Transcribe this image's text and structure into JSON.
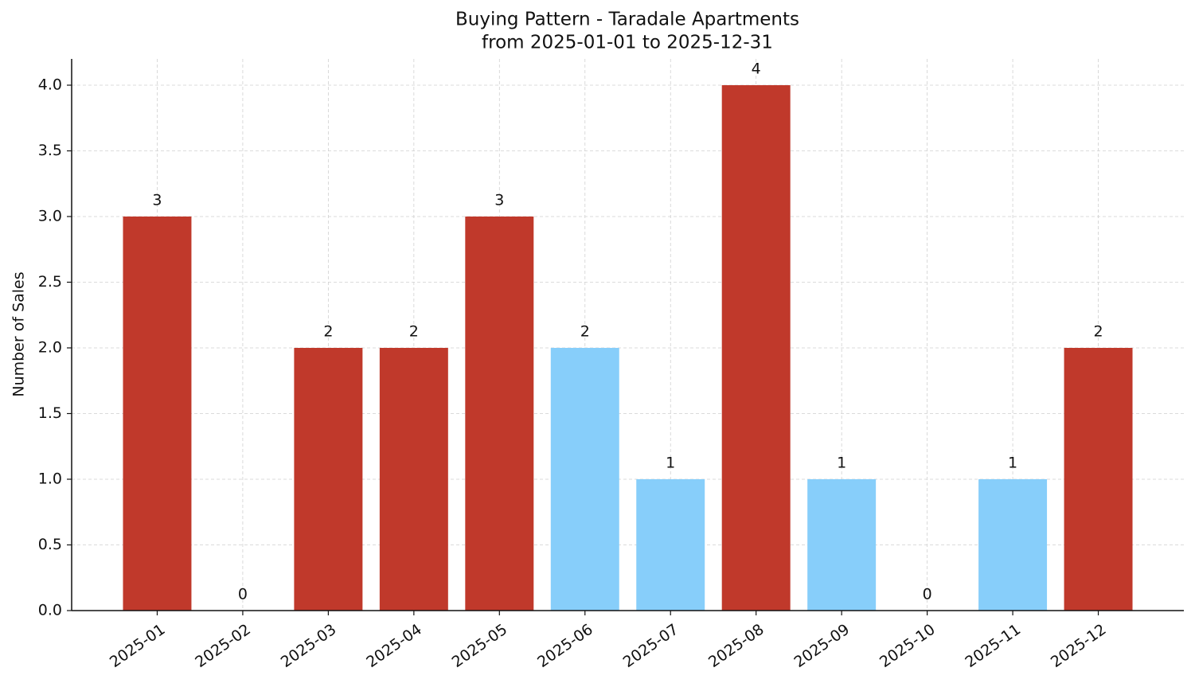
{
  "chart_data": {
    "type": "bar",
    "title": "Buying Pattern - Taradale Apartments",
    "subtitle": "from 2025-01-01 to 2025-12-31",
    "y_label": "Number of Sales",
    "categories": [
      "2025-01",
      "2025-02",
      "2025-03",
      "2025-04",
      "2025-05",
      "2025-06",
      "2025-07",
      "2025-08",
      "2025-09",
      "2025-10",
      "2025-11",
      "2025-12"
    ],
    "values": [
      3,
      0,
      2,
      2,
      3,
      2,
      1,
      4,
      1,
      0,
      1,
      2
    ],
    "colors": [
      "#c0392b",
      "#87cefa",
      "#c0392b",
      "#c0392b",
      "#c0392b",
      "#87cefa",
      "#87cefa",
      "#c0392b",
      "#87cefa",
      "#87cefa",
      "#87cefa",
      "#c0392b"
    ],
    "ylim": [
      0,
      4.2
    ],
    "yticks": [
      {
        "value": 0,
        "label": "0.0"
      },
      0.5,
      {
        "value": 1,
        "label": "1.0"
      },
      1.5,
      {
        "value": 2,
        "label": "2.0"
      },
      2.5,
      {
        "value": 3,
        "label": "3.0"
      },
      3.5,
      {
        "value": 4,
        "label": "4.0"
      }
    ],
    "grid": true
  }
}
